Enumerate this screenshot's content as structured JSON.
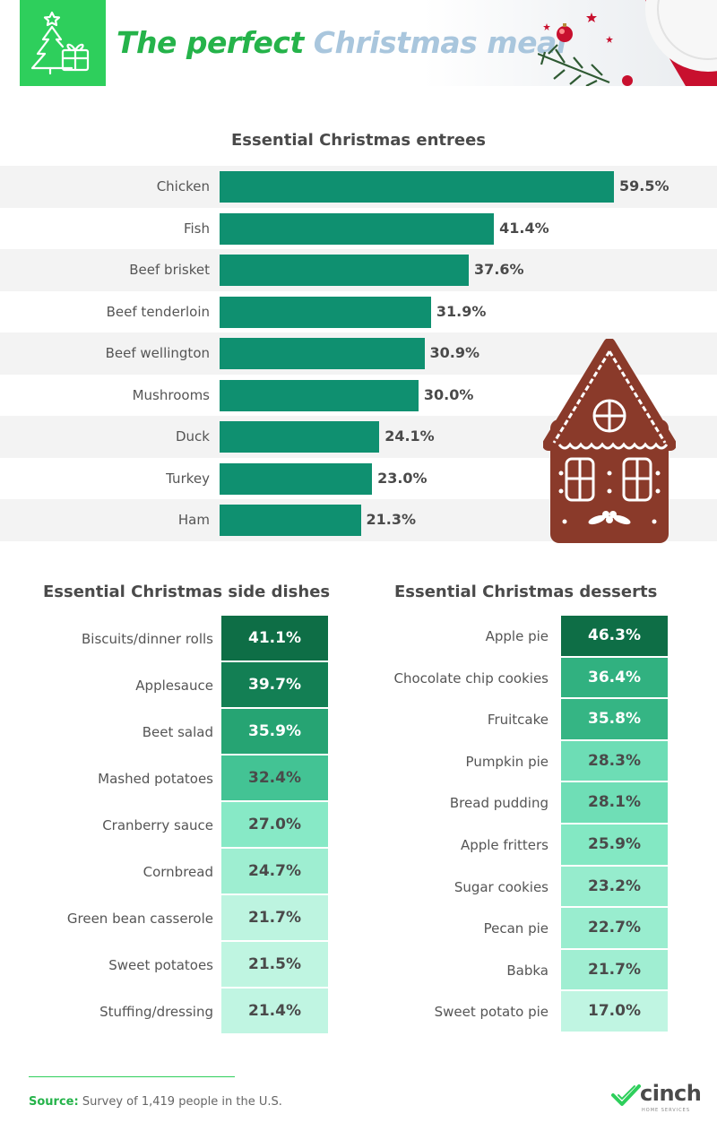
{
  "header": {
    "title_part1": "The perfect",
    "title_part2": "Christmas meal",
    "logo_icon": "christmas-tree-gift-icon"
  },
  "colors": {
    "accent_green": "#2ecf5c",
    "title_green": "#25b34a",
    "title_blue": "#a9c6dd",
    "bar_green": "#0f9070",
    "row_shade": "#f3f3f3"
  },
  "chart_data": [
    {
      "type": "bar",
      "orientation": "horizontal",
      "title": "Essential Christmas entrees",
      "categories": [
        "Chicken",
        "Fish",
        "Beef brisket",
        "Beef tenderloin",
        "Beef wellington",
        "Mushrooms",
        "Duck",
        "Turkey",
        "Ham"
      ],
      "values": [
        59.5,
        41.4,
        37.6,
        31.9,
        30.9,
        30.0,
        24.1,
        23.0,
        21.3
      ],
      "value_labels": [
        "59.5%",
        "41.4%",
        "37.6%",
        "31.9%",
        "30.9%",
        "30.0%",
        "24.1%",
        "23.0%",
        "21.3%"
      ],
      "unit": "%",
      "grid": false
    },
    {
      "type": "table",
      "title": "Essential Christmas side dishes",
      "categories": [
        "Biscuits/dinner rolls",
        "Applesauce",
        "Beet salad",
        "Mashed potatoes",
        "Cranberry sauce",
        "Cornbread",
        "Green bean casserole",
        "Sweet potatoes",
        "Stuffing/dressing"
      ],
      "values": [
        41.1,
        39.7,
        35.9,
        32.4,
        27.0,
        24.7,
        21.7,
        21.5,
        21.4
      ],
      "value_labels": [
        "41.1%",
        "39.7%",
        "35.9%",
        "32.4%",
        "27.0%",
        "24.7%",
        "21.7%",
        "21.5%",
        "21.4%"
      ],
      "unit": "%",
      "color_scale": "heat-green"
    },
    {
      "type": "table",
      "title": "Essential Christmas desserts",
      "categories": [
        "Apple pie",
        "Chocolate chip cookies",
        "Fruitcake",
        "Pumpkin pie",
        "Bread pudding",
        "Apple fritters",
        "Sugar cookies",
        "Pecan pie",
        "Babka",
        "Sweet potato pie"
      ],
      "values": [
        46.3,
        36.4,
        35.8,
        28.3,
        28.1,
        25.9,
        23.2,
        22.7,
        21.7,
        17.0
      ],
      "value_labels": [
        "46.3%",
        "36.4%",
        "35.8%",
        "28.3%",
        "28.1%",
        "25.9%",
        "23.2%",
        "22.7%",
        "21.7%",
        "17.0%"
      ],
      "unit": "%",
      "color_scale": "heat-green"
    }
  ],
  "footer": {
    "source_label": "Source:",
    "source_text": "Survey of 1,419 people in the U.S.",
    "brand_name": "cinch",
    "brand_sub": "HOME SERVICES",
    "brand_icon": "checkmark-logo-icon"
  },
  "decorations": {
    "gingerbread": "gingerbread-house-icon",
    "header_art": "christmas-plate-ornament-icon"
  }
}
